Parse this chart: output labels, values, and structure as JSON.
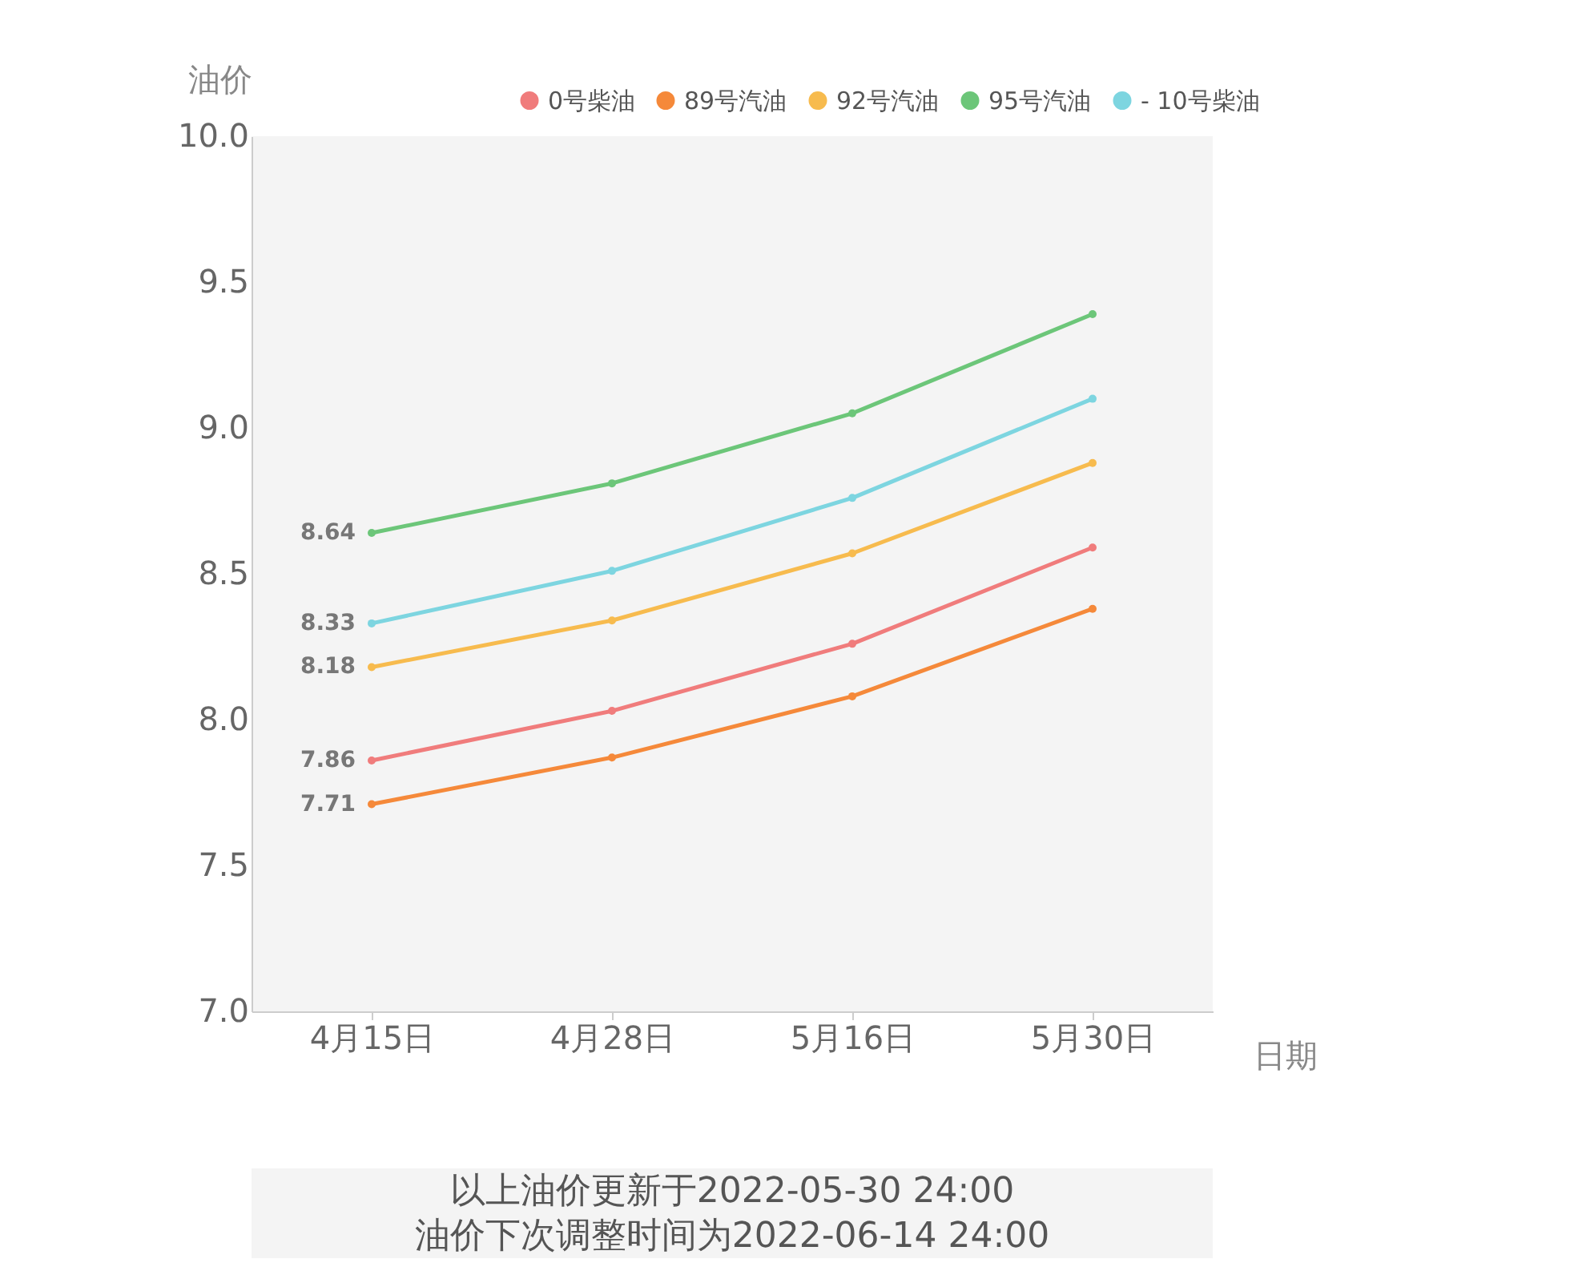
{
  "chart_data": {
    "type": "line",
    "categories": [
      "4月15日",
      "4月28日",
      "5月16日",
      "5月30日"
    ],
    "xlabel": "日期",
    "ylabel": "油价",
    "ylim": [
      7.0,
      10.0
    ],
    "yticks": [
      {
        "value": 7.0,
        "label": "7.0"
      },
      {
        "value": 7.5,
        "label": "7.5"
      },
      {
        "value": 8.0,
        "label": "8.0"
      },
      {
        "value": 8.5,
        "label": "8.5"
      },
      {
        "value": 9.0,
        "label": "9.0"
      },
      {
        "value": 9.5,
        "label": "9.5"
      },
      {
        "value": 10.0,
        "label": "10.0"
      }
    ],
    "series": [
      {
        "name": "0号柴油",
        "color": "#f07c7c",
        "values": [
          7.86,
          8.03,
          8.26,
          8.59
        ],
        "value_labels": [
          "7.86",
          null,
          null,
          null
        ]
      },
      {
        "name": "89号汽油",
        "color": "#f5893a",
        "values": [
          7.71,
          7.87,
          8.08,
          8.38
        ],
        "value_labels": [
          "7.71",
          null,
          null,
          null
        ]
      },
      {
        "name": "92号汽油",
        "color": "#f7bb4e",
        "values": [
          8.18,
          8.34,
          8.57,
          8.88
        ],
        "value_labels": [
          "8.18",
          null,
          null,
          null
        ]
      },
      {
        "name": "95号汽油",
        "color": "#6cc679",
        "values": [
          8.64,
          8.81,
          9.05,
          9.39
        ],
        "value_labels": [
          "8.64",
          null,
          null,
          null
        ]
      },
      {
        "name": "- 10号柴油",
        "color": "#7dd5e0",
        "values": [
          8.33,
          8.51,
          8.76,
          9.1
        ],
        "value_labels": [
          "8.33",
          null,
          null,
          null
        ]
      }
    ],
    "annotations": [
      "以上油价更新于2022-05-30 24:00",
      "油价下次调整时间为2022-06-14 24:00"
    ],
    "grid": false,
    "legend": "top right",
    "marker": "circle",
    "line_style": "solid"
  }
}
